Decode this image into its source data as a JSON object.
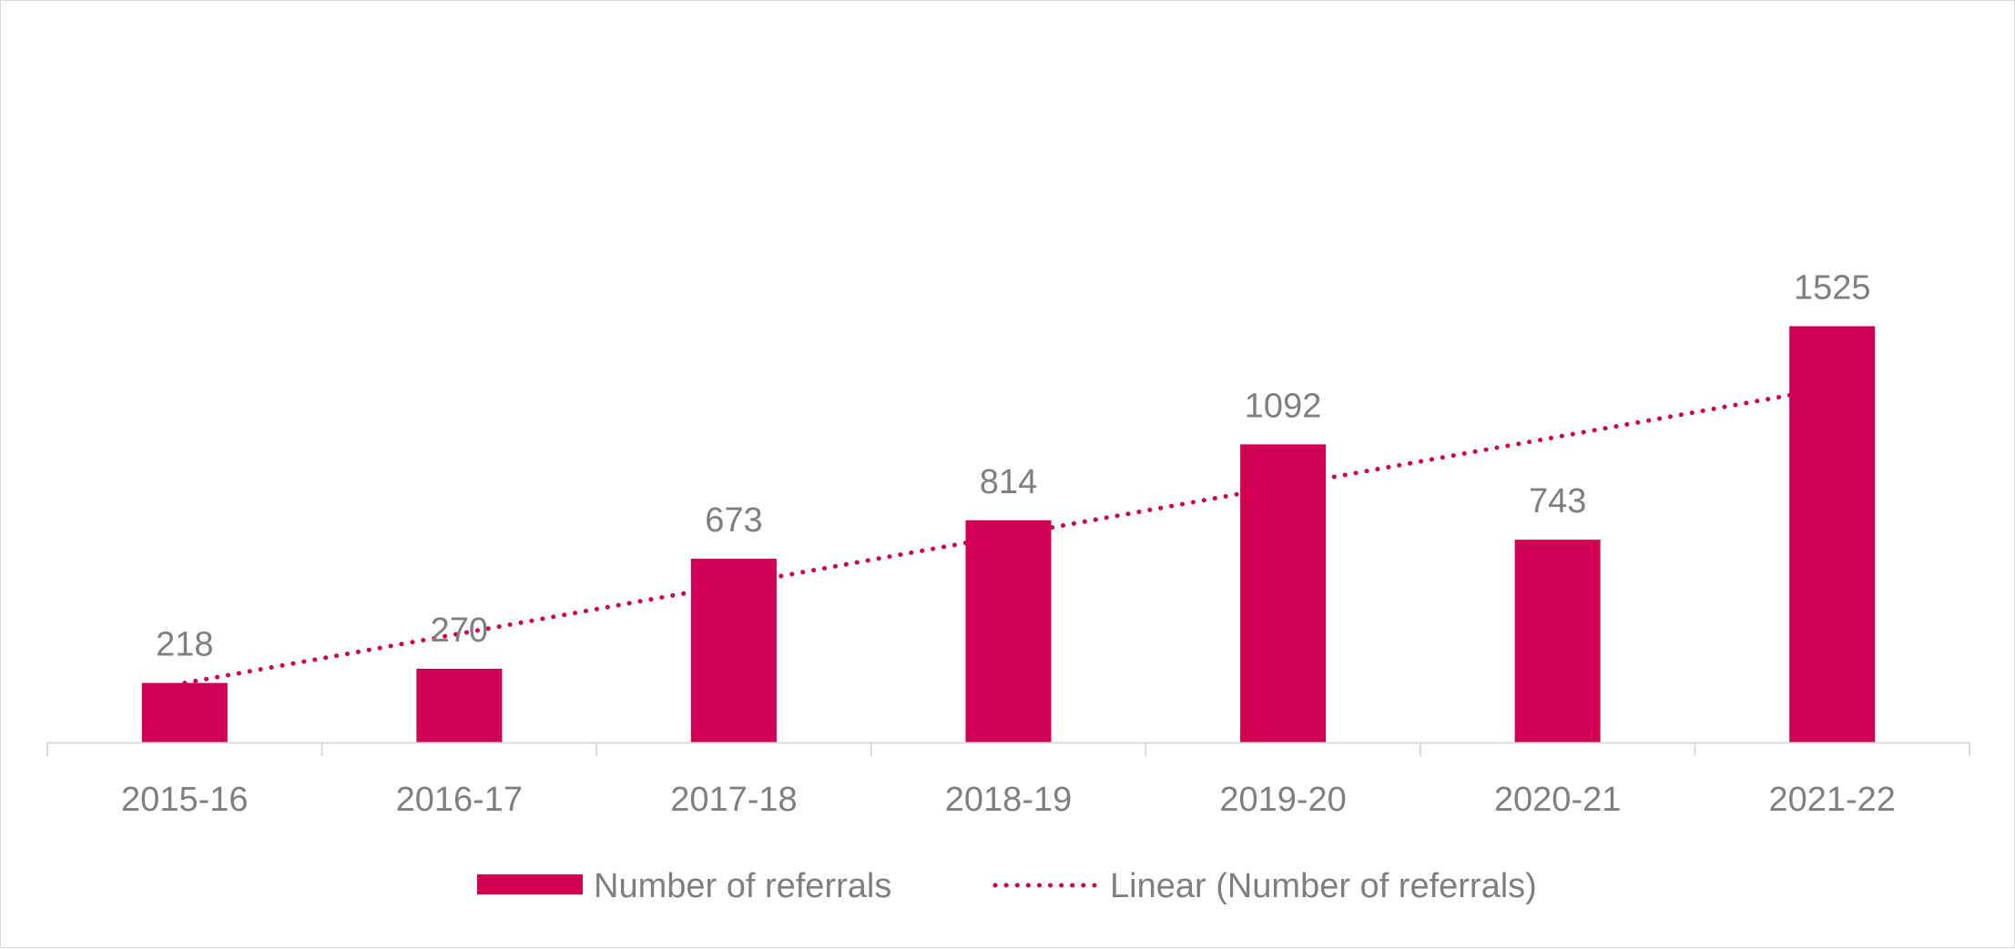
{
  "chart_data": {
    "type": "bar",
    "categories": [
      "2015-16",
      "2016-17",
      "2017-18",
      "2018-19",
      "2019-20",
      "2020-21",
      "2021-22"
    ],
    "series": [
      {
        "name": "Number of referrals",
        "values": [
          218,
          270,
          673,
          814,
          1092,
          743,
          1525
        ],
        "color": "#d20055",
        "data_labels": [
          "218",
          "270",
          "673",
          "814",
          "1092",
          "743",
          "1525"
        ]
      }
    ],
    "trendline": {
      "name": "Linear (Number of referrals)",
      "type": "linear",
      "style": "dotted",
      "color": "#d20055",
      "start": 218,
      "end": 1300
    },
    "title": "",
    "xlabel": "",
    "ylabel": "",
    "ylim": [
      0,
      1600
    ],
    "grid": false,
    "legend": "bottom",
    "label_color": "#7f7f7f",
    "axis_color": "#d9d9d9"
  }
}
